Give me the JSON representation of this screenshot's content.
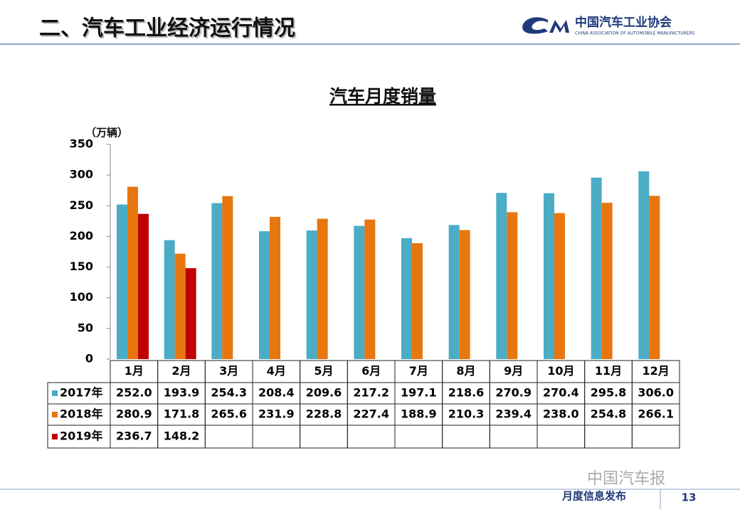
{
  "header": {
    "title": "二、汽车工业经济运行情况",
    "logo_name": "中国汽车工业协会",
    "logo_subtitle": "CHINA ASSOCIATION OF AUTOMOBILE MANUFACTURERS"
  },
  "chart_data": {
    "type": "bar",
    "title": "汽车月度销量",
    "y_label": "（万辆）",
    "categories": [
      "1月",
      "2月",
      "3月",
      "4月",
      "5月",
      "6月",
      "7月",
      "8月",
      "9月",
      "10月",
      "11月",
      "12月"
    ],
    "series": [
      {
        "name": "2017年",
        "color": "#4bacc6",
        "values": [
          252.0,
          193.9,
          254.3,
          208.4,
          209.6,
          217.2,
          197.1,
          218.6,
          270.9,
          270.4,
          295.8,
          306.0
        ],
        "value_labels": [
          "252.0",
          "193.9",
          "254.3",
          "208.4",
          "209.6",
          "217.2",
          "197.1",
          "218.6",
          "270.9",
          "270.4",
          "295.8",
          "306.0"
        ]
      },
      {
        "name": "2018年",
        "color": "#e8760f",
        "values": [
          280.9,
          171.8,
          265.6,
          231.9,
          228.8,
          227.4,
          188.9,
          210.3,
          239.4,
          238.0,
          254.8,
          266.1
        ],
        "value_labels": [
          "280.9",
          "171.8",
          "265.6",
          "231.9",
          "228.8",
          "227.4",
          "188.9",
          "210.3",
          "239.4",
          "238.0",
          "254.8",
          "266.1"
        ]
      },
      {
        "name": "2019年",
        "color": "#c00000",
        "values": [
          236.7,
          148.2,
          null,
          null,
          null,
          null,
          null,
          null,
          null,
          null,
          null,
          null
        ],
        "value_labels": [
          "236.7",
          "148.2",
          null,
          null,
          null,
          null,
          null,
          null,
          null,
          null,
          null,
          null
        ]
      }
    ],
    "ylim": [
      0,
      350
    ],
    "yticks": [
      0,
      50,
      100,
      150,
      200,
      250,
      300,
      350
    ]
  },
  "footer": {
    "section": "月度信息发布",
    "page": "13",
    "watermark": "中国汽车报"
  }
}
